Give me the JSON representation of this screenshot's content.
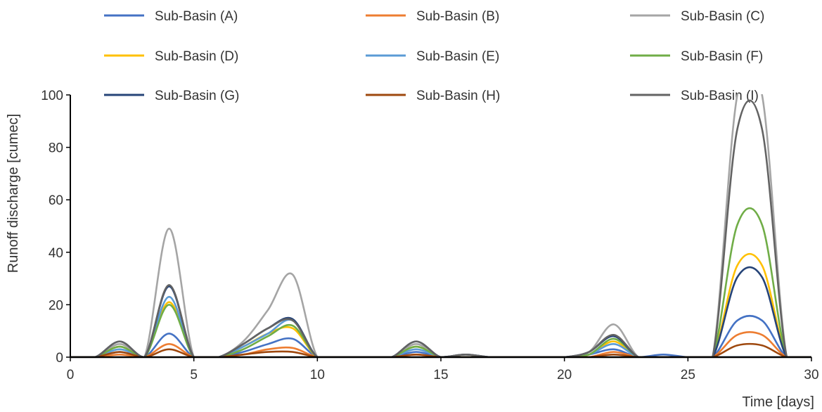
{
  "chart_data": {
    "type": "line",
    "xlabel": "Time [days]",
    "ylabel": "Runoff discharge [cumec]",
    "xlim": [
      0,
      30
    ],
    "ylim": [
      0,
      100
    ],
    "xticks": [
      0,
      5,
      10,
      15,
      20,
      25,
      30
    ],
    "yticks": [
      0,
      20,
      40,
      60,
      80,
      100
    ],
    "grid": false,
    "legend_position": "top",
    "x": [
      0,
      1,
      2,
      3,
      4,
      5,
      6,
      7,
      8,
      9,
      10,
      11,
      12,
      13,
      14,
      15,
      16,
      17,
      18,
      19,
      20,
      21,
      22,
      23,
      24,
      25,
      26,
      27,
      28,
      29,
      30
    ],
    "series": [
      {
        "name": "Sub-Basin (A)",
        "color": "#4472c4",
        "values": [
          0,
          0,
          2,
          0,
          9,
          0,
          0,
          2,
          5,
          7,
          0,
          0,
          0,
          0,
          2,
          0,
          0,
          0,
          0,
          0,
          0,
          1,
          3,
          0,
          1,
          0,
          0,
          14,
          14,
          0,
          0
        ]
      },
      {
        "name": "Sub-Basin (B)",
        "color": "#ed7d31",
        "values": [
          0,
          0,
          1,
          0,
          5,
          0,
          0,
          1,
          3,
          3.5,
          0,
          0,
          0,
          0,
          1,
          0,
          0,
          0,
          0,
          0,
          0,
          0,
          2,
          0,
          0,
          0,
          0,
          8.5,
          8.5,
          0,
          0
        ]
      },
      {
        "name": "Sub-Basin (C)",
        "color": "#a5a5a5",
        "values": [
          0,
          0,
          5,
          0,
          49,
          0,
          0,
          6,
          18,
          31.5,
          0,
          0,
          0,
          0,
          5,
          0,
          1,
          0,
          0,
          0,
          0,
          2,
          12.5,
          0,
          0,
          0,
          0,
          100,
          100,
          0,
          0
        ]
      },
      {
        "name": "Sub-Basin (D)",
        "color": "#ffc000",
        "values": [
          0,
          0,
          4,
          0,
          21,
          0,
          0,
          4,
          9,
          11,
          0,
          0,
          0,
          0,
          4,
          0,
          0,
          0,
          0,
          0,
          0,
          1,
          6,
          0,
          0,
          0,
          0,
          35,
          35,
          0,
          0
        ]
      },
      {
        "name": "Sub-Basin (E)",
        "color": "#5b9bd5",
        "values": [
          0,
          0,
          3,
          0,
          23,
          0,
          0,
          4,
          9,
          14,
          0,
          0,
          0,
          0,
          3,
          0,
          0,
          0,
          0,
          0,
          0,
          1,
          5,
          0,
          0,
          0,
          0,
          0,
          0,
          0,
          0
        ]
      },
      {
        "name": "Sub-Basin (F)",
        "color": "#70ad47",
        "values": [
          0,
          0,
          4,
          0,
          20,
          0,
          0,
          3,
          8,
          12,
          0,
          0,
          0,
          0,
          4,
          0,
          0,
          0,
          0,
          0,
          0,
          1,
          7,
          0,
          0,
          0,
          0,
          50.5,
          50.5,
          0,
          0
        ]
      },
      {
        "name": "Sub-Basin (G)",
        "color": "#264478",
        "values": [
          0,
          0,
          6,
          0,
          27,
          0,
          0,
          5,
          11,
          14.5,
          0,
          0,
          0,
          0,
          6,
          0,
          1,
          0,
          0,
          0,
          0,
          2,
          8,
          0,
          0,
          0,
          0,
          30.5,
          30.5,
          0,
          0
        ]
      },
      {
        "name": "Sub-Basin (H)",
        "color": "#9e480e",
        "values": [
          0,
          0,
          2,
          0,
          3,
          0,
          0,
          1,
          2,
          2,
          0,
          0,
          0,
          0,
          1,
          0,
          0,
          0,
          0,
          0,
          0,
          0,
          1,
          0,
          0,
          0,
          0,
          4.5,
          4.5,
          0,
          0
        ]
      },
      {
        "name": "Sub-Basin (I)",
        "color": "#636363",
        "values": [
          0,
          0,
          6,
          0,
          27.5,
          0,
          0,
          5,
          11,
          14,
          0,
          0,
          0,
          0,
          6,
          0,
          1,
          0,
          0,
          0,
          0,
          2,
          8.5,
          0,
          0,
          0,
          0,
          87,
          87,
          0,
          0
        ]
      }
    ]
  }
}
